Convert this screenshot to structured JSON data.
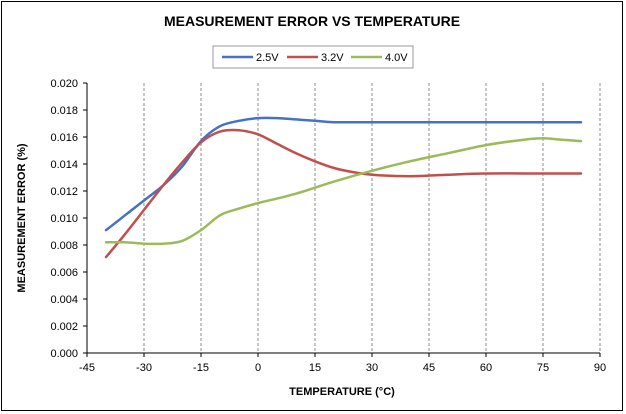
{
  "chart_data": {
    "type": "line",
    "title": "MEASUREMENT ERROR VS TEMPERATURE",
    "xlabel": "TEMPERATURE (°C)",
    "ylabel": "MEASUREMENT ERROR (%)",
    "xlim": [
      -45,
      90
    ],
    "ylim": [
      0,
      0.02
    ],
    "xticks": [
      "-45",
      "-30",
      "-15",
      "0",
      "15",
      "30",
      "45",
      "60",
      "75",
      "90"
    ],
    "yticks": [
      "0.000",
      "0.002",
      "0.004",
      "0.006",
      "0.008",
      "0.010",
      "0.012",
      "0.014",
      "0.016",
      "0.018",
      "0.020"
    ],
    "grid": "vertical",
    "legend_position": "top",
    "series": [
      {
        "name": "2.5V",
        "color": "#4472C4",
        "points": [
          [
            -40,
            0.0091
          ],
          [
            -35,
            0.0102
          ],
          [
            -30,
            0.0113
          ],
          [
            -25,
            0.0124
          ],
          [
            -20,
            0.0138
          ],
          [
            -15,
            0.0157
          ],
          [
            -10,
            0.0168
          ],
          [
            -5,
            0.0172
          ],
          [
            0,
            0.0174
          ],
          [
            5,
            0.0174
          ],
          [
            10,
            0.0173
          ],
          [
            15,
            0.0172
          ],
          [
            20,
            0.0171
          ],
          [
            30,
            0.0171
          ],
          [
            45,
            0.0171
          ],
          [
            60,
            0.0171
          ],
          [
            75,
            0.0171
          ],
          [
            85,
            0.0171
          ]
        ]
      },
      {
        "name": "3.2V",
        "color": "#C0504D",
        "points": [
          [
            -40,
            0.0071
          ],
          [
            -35,
            0.0088
          ],
          [
            -30,
            0.0106
          ],
          [
            -25,
            0.0124
          ],
          [
            -20,
            0.0141
          ],
          [
            -15,
            0.0156
          ],
          [
            -10,
            0.0164
          ],
          [
            -5,
            0.0165
          ],
          [
            0,
            0.0162
          ],
          [
            5,
            0.0155
          ],
          [
            10,
            0.0148
          ],
          [
            15,
            0.0142
          ],
          [
            20,
            0.0137
          ],
          [
            25,
            0.0134
          ],
          [
            30,
            0.0132
          ],
          [
            40,
            0.0131
          ],
          [
            50,
            0.0132
          ],
          [
            60,
            0.0133
          ],
          [
            75,
            0.0133
          ],
          [
            85,
            0.0133
          ]
        ]
      },
      {
        "name": "4.0V",
        "color": "#9BBB59",
        "points": [
          [
            -40,
            0.0082
          ],
          [
            -35,
            0.0082
          ],
          [
            -30,
            0.0081
          ],
          [
            -25,
            0.0081
          ],
          [
            -20,
            0.0083
          ],
          [
            -15,
            0.0091
          ],
          [
            -10,
            0.0102
          ],
          [
            -5,
            0.0107
          ],
          [
            0,
            0.0111
          ],
          [
            10,
            0.0118
          ],
          [
            20,
            0.0127
          ],
          [
            30,
            0.0135
          ],
          [
            40,
            0.0142
          ],
          [
            50,
            0.0148
          ],
          [
            60,
            0.0154
          ],
          [
            70,
            0.0158
          ],
          [
            75,
            0.0159
          ],
          [
            80,
            0.0158
          ],
          [
            85,
            0.0157
          ]
        ]
      }
    ]
  }
}
